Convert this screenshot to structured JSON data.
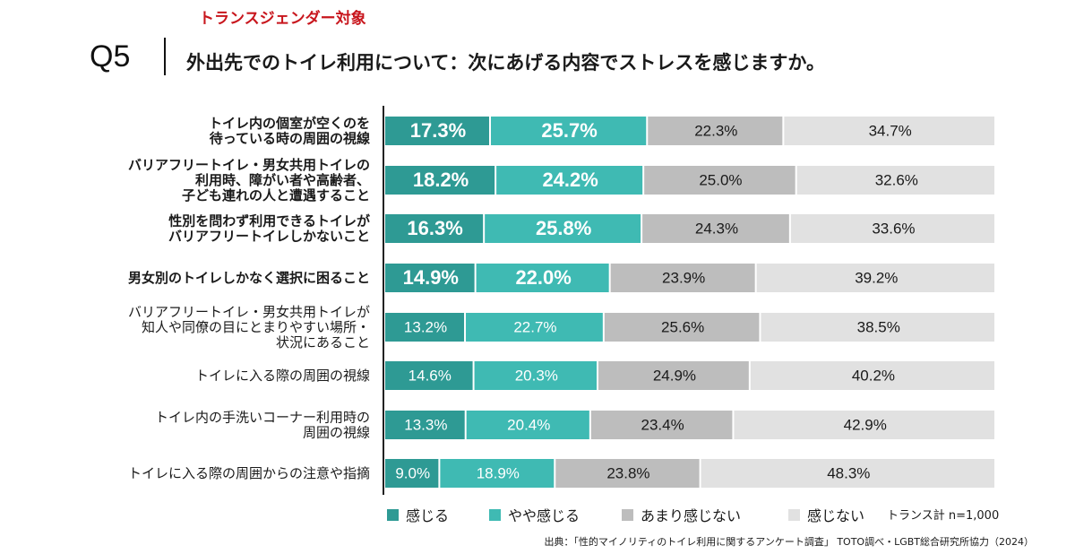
{
  "header": {
    "subtitle": "トランスジェンダー対象",
    "question_number": "Q5",
    "question": "外出先でのトイレ利用について：次にあげる内容でストレスを感じますか。"
  },
  "colors": {
    "感じる": "#2e9a94",
    "やや感じる": "#3fbab3",
    "あまり感じない": "#bdbdbd",
    "感じない": "#e1e1e1"
  },
  "legend": {
    "items": [
      "感じる",
      "やや感じる",
      "あまり感じない",
      "感じない"
    ]
  },
  "sample_note": "トランス計 n=1,000",
  "source": "出典：「性的マイノリティのトイレ利用に関するアンケート調査」 TOTO調べ・LGBT総合研究所協力（2024）",
  "chart_data": {
    "type": "bar",
    "orientation": "horizontal",
    "stacked": true,
    "unit": "%",
    "categories": [
      "トイレ内の個室が空くのを\n待っている時の周囲の視線",
      "バリアフリートイレ・男女共用トイレの\n利用時、障がい者や高齢者、\n子ども連れの人と遭遇すること",
      "性別を問わず利用できるトイレが\nバリアフリートイレしかないこと",
      "男女別のトイレしかなく選択に困ること",
      "バリアフリートイレ・男女共用トイレが\n知人や同僚の目にとまりやすい場所・\n状況にあること",
      "トイレに入る際の周囲の視線",
      "トイレ内の手洗いコーナー利用時の\n周囲の視線",
      "トイレに入る際の周囲からの注意や指摘"
    ],
    "bold_categories": [
      true,
      true,
      true,
      true,
      false,
      false,
      false,
      false
    ],
    "series": [
      {
        "name": "感じる",
        "values": [
          17.3,
          18.2,
          16.3,
          14.9,
          13.2,
          14.6,
          13.3,
          9.0
        ]
      },
      {
        "name": "やや感じる",
        "values": [
          25.7,
          24.2,
          25.8,
          22.0,
          22.7,
          20.3,
          20.4,
          18.9
        ]
      },
      {
        "name": "あまり感じない",
        "values": [
          22.3,
          25.0,
          24.3,
          23.9,
          25.6,
          24.9,
          23.4,
          23.8
        ]
      },
      {
        "name": "感じない",
        "values": [
          34.7,
          32.6,
          33.6,
          39.2,
          38.5,
          40.2,
          42.9,
          48.3
        ]
      }
    ],
    "xlim": [
      0,
      100
    ],
    "legend_position": "bottom"
  }
}
